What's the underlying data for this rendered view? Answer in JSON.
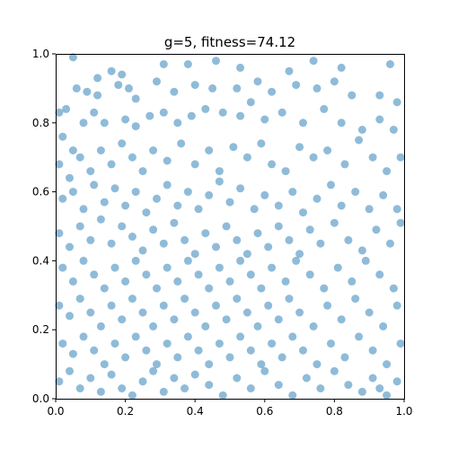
{
  "chart_data": {
    "type": "scatter",
    "title": "g=5, fitness=74.12",
    "xlabel": "",
    "ylabel": "",
    "xlim": [
      0,
      1
    ],
    "ylim": [
      0,
      1
    ],
    "x_ticks": [
      "0.0",
      "0.2",
      "0.4",
      "0.6",
      "0.8",
      "1.0"
    ],
    "y_ticks": [
      "0.0",
      "0.2",
      "0.4",
      "0.6",
      "0.8",
      "1.0"
    ],
    "grid": false,
    "legend": false,
    "marker_color": "#1f77b4",
    "marker_alpha": 0.5,
    "points": [
      [
        0.05,
        0.99
      ],
      [
        0.12,
        0.93
      ],
      [
        0.16,
        0.95
      ],
      [
        0.19,
        0.94
      ],
      [
        0.31,
        0.97
      ],
      [
        0.38,
        0.97
      ],
      [
        0.46,
        0.98
      ],
      [
        0.53,
        0.96
      ],
      [
        0.67,
        0.95
      ],
      [
        0.74,
        0.98
      ],
      [
        0.82,
        0.96
      ],
      [
        0.96,
        0.97
      ],
      [
        0.01,
        0.83
      ],
      [
        0.03,
        0.84
      ],
      [
        0.06,
        0.9
      ],
      [
        0.09,
        0.89
      ],
      [
        0.12,
        0.88
      ],
      [
        0.18,
        0.91
      ],
      [
        0.21,
        0.9
      ],
      [
        0.23,
        0.87
      ],
      [
        0.29,
        0.92
      ],
      [
        0.34,
        0.89
      ],
      [
        0.4,
        0.91
      ],
      [
        0.45,
        0.9
      ],
      [
        0.52,
        0.9
      ],
      [
        0.58,
        0.92
      ],
      [
        0.62,
        0.89
      ],
      [
        0.69,
        0.91
      ],
      [
        0.75,
        0.9
      ],
      [
        0.8,
        0.92
      ],
      [
        0.85,
        0.88
      ],
      [
        0.93,
        0.88
      ],
      [
        0.98,
        0.86
      ],
      [
        0.02,
        0.76
      ],
      [
        0.05,
        0.72
      ],
      [
        0.08,
        0.8
      ],
      [
        0.11,
        0.83
      ],
      [
        0.14,
        0.8
      ],
      [
        0.2,
        0.81
      ],
      [
        0.23,
        0.79
      ],
      [
        0.27,
        0.82
      ],
      [
        0.31,
        0.83
      ],
      [
        0.35,
        0.8
      ],
      [
        0.39,
        0.82
      ],
      [
        0.43,
        0.84
      ],
      [
        0.48,
        0.83
      ],
      [
        0.53,
        0.82
      ],
      [
        0.56,
        0.86
      ],
      [
        0.6,
        0.81
      ],
      [
        0.65,
        0.83
      ],
      [
        0.71,
        0.8
      ],
      [
        0.77,
        0.84
      ],
      [
        0.82,
        0.8
      ],
      [
        0.88,
        0.78
      ],
      [
        0.93,
        0.81
      ],
      [
        0.97,
        0.78
      ],
      [
        0.01,
        0.68
      ],
      [
        0.04,
        0.64
      ],
      [
        0.07,
        0.7
      ],
      [
        0.1,
        0.66
      ],
      [
        0.13,
        0.72
      ],
      [
        0.16,
        0.68
      ],
      [
        0.19,
        0.74
      ],
      [
        0.22,
        0.7
      ],
      [
        0.25,
        0.66
      ],
      [
        0.28,
        0.72
      ],
      [
        0.32,
        0.69
      ],
      [
        0.36,
        0.74
      ],
      [
        0.4,
        0.68
      ],
      [
        0.44,
        0.72
      ],
      [
        0.47,
        0.66
      ],
      [
        0.51,
        0.73
      ],
      [
        0.55,
        0.7
      ],
      [
        0.59,
        0.74
      ],
      [
        0.62,
        0.68
      ],
      [
        0.66,
        0.66
      ],
      [
        0.7,
        0.73
      ],
      [
        0.74,
        0.7
      ],
      [
        0.78,
        0.72
      ],
      [
        0.83,
        0.68
      ],
      [
        0.87,
        0.75
      ],
      [
        0.91,
        0.7
      ],
      [
        0.95,
        0.66
      ],
      [
        0.99,
        0.7
      ],
      [
        0.02,
        0.58
      ],
      [
        0.05,
        0.6
      ],
      [
        0.08,
        0.55
      ],
      [
        0.11,
        0.62
      ],
      [
        0.14,
        0.57
      ],
      [
        0.17,
        0.61
      ],
      [
        0.2,
        0.56
      ],
      [
        0.23,
        0.6
      ],
      [
        0.26,
        0.54
      ],
      [
        0.29,
        0.58
      ],
      [
        0.32,
        0.62
      ],
      [
        0.35,
        0.56
      ],
      [
        0.38,
        0.6
      ],
      [
        0.41,
        0.55
      ],
      [
        0.44,
        0.59
      ],
      [
        0.47,
        0.63
      ],
      [
        0.5,
        0.57
      ],
      [
        0.53,
        0.61
      ],
      [
        0.57,
        0.55
      ],
      [
        0.6,
        0.59
      ],
      [
        0.64,
        0.56
      ],
      [
        0.68,
        0.6
      ],
      [
        0.71,
        0.54
      ],
      [
        0.75,
        0.58
      ],
      [
        0.79,
        0.62
      ],
      [
        0.82,
        0.56
      ],
      [
        0.86,
        0.6
      ],
      [
        0.9,
        0.55
      ],
      [
        0.94,
        0.59
      ],
      [
        0.98,
        0.55
      ],
      [
        0.01,
        0.48
      ],
      [
        0.04,
        0.44
      ],
      [
        0.07,
        0.5
      ],
      [
        0.1,
        0.46
      ],
      [
        0.13,
        0.52
      ],
      [
        0.16,
        0.45
      ],
      [
        0.19,
        0.5
      ],
      [
        0.22,
        0.47
      ],
      [
        0.25,
        0.43
      ],
      [
        0.28,
        0.49
      ],
      [
        0.31,
        0.45
      ],
      [
        0.34,
        0.51
      ],
      [
        0.37,
        0.46
      ],
      [
        0.4,
        0.42
      ],
      [
        0.43,
        0.48
      ],
      [
        0.46,
        0.44
      ],
      [
        0.49,
        0.5
      ],
      [
        0.52,
        0.46
      ],
      [
        0.55,
        0.42
      ],
      [
        0.58,
        0.48
      ],
      [
        0.61,
        0.44
      ],
      [
        0.64,
        0.5
      ],
      [
        0.67,
        0.46
      ],
      [
        0.7,
        0.42
      ],
      [
        0.73,
        0.49
      ],
      [
        0.76,
        0.45
      ],
      [
        0.8,
        0.51
      ],
      [
        0.84,
        0.46
      ],
      [
        0.88,
        0.43
      ],
      [
        0.92,
        0.49
      ],
      [
        0.96,
        0.45
      ],
      [
        0.99,
        0.51
      ],
      [
        0.02,
        0.38
      ],
      [
        0.05,
        0.34
      ],
      [
        0.08,
        0.4
      ],
      [
        0.11,
        0.36
      ],
      [
        0.14,
        0.32
      ],
      [
        0.17,
        0.38
      ],
      [
        0.2,
        0.34
      ],
      [
        0.23,
        0.4
      ],
      [
        0.26,
        0.36
      ],
      [
        0.29,
        0.32
      ],
      [
        0.32,
        0.38
      ],
      [
        0.35,
        0.34
      ],
      [
        0.38,
        0.4
      ],
      [
        0.41,
        0.36
      ],
      [
        0.44,
        0.32
      ],
      [
        0.47,
        0.38
      ],
      [
        0.5,
        0.34
      ],
      [
        0.53,
        0.4
      ],
      [
        0.56,
        0.36
      ],
      [
        0.59,
        0.32
      ],
      [
        0.62,
        0.38
      ],
      [
        0.66,
        0.34
      ],
      [
        0.69,
        0.4
      ],
      [
        0.73,
        0.36
      ],
      [
        0.77,
        0.32
      ],
      [
        0.81,
        0.38
      ],
      [
        0.85,
        0.34
      ],
      [
        0.89,
        0.4
      ],
      [
        0.93,
        0.36
      ],
      [
        0.97,
        0.32
      ],
      [
        0.01,
        0.27
      ],
      [
        0.04,
        0.24
      ],
      [
        0.07,
        0.29
      ],
      [
        0.1,
        0.25
      ],
      [
        0.13,
        0.21
      ],
      [
        0.16,
        0.27
      ],
      [
        0.19,
        0.23
      ],
      [
        0.22,
        0.29
      ],
      [
        0.25,
        0.25
      ],
      [
        0.28,
        0.21
      ],
      [
        0.31,
        0.27
      ],
      [
        0.34,
        0.23
      ],
      [
        0.37,
        0.29
      ],
      [
        0.4,
        0.25
      ],
      [
        0.43,
        0.21
      ],
      [
        0.46,
        0.27
      ],
      [
        0.49,
        0.23
      ],
      [
        0.52,
        0.29
      ],
      [
        0.55,
        0.25
      ],
      [
        0.58,
        0.21
      ],
      [
        0.61,
        0.27
      ],
      [
        0.64,
        0.23
      ],
      [
        0.67,
        0.29
      ],
      [
        0.7,
        0.25
      ],
      [
        0.74,
        0.21
      ],
      [
        0.78,
        0.27
      ],
      [
        0.82,
        0.23
      ],
      [
        0.86,
        0.29
      ],
      [
        0.9,
        0.25
      ],
      [
        0.94,
        0.21
      ],
      [
        0.98,
        0.27
      ],
      [
        0.02,
        0.16
      ],
      [
        0.05,
        0.13
      ],
      [
        0.08,
        0.18
      ],
      [
        0.11,
        0.14
      ],
      [
        0.14,
        0.1
      ],
      [
        0.17,
        0.16
      ],
      [
        0.2,
        0.12
      ],
      [
        0.23,
        0.18
      ],
      [
        0.26,
        0.14
      ],
      [
        0.29,
        0.1
      ],
      [
        0.32,
        0.16
      ],
      [
        0.35,
        0.12
      ],
      [
        0.38,
        0.18
      ],
      [
        0.41,
        0.14
      ],
      [
        0.44,
        0.1
      ],
      [
        0.47,
        0.16
      ],
      [
        0.5,
        0.12
      ],
      [
        0.53,
        0.18
      ],
      [
        0.56,
        0.14
      ],
      [
        0.59,
        0.1
      ],
      [
        0.62,
        0.16
      ],
      [
        0.65,
        0.12
      ],
      [
        0.68,
        0.18
      ],
      [
        0.71,
        0.14
      ],
      [
        0.75,
        0.1
      ],
      [
        0.79,
        0.16
      ],
      [
        0.83,
        0.12
      ],
      [
        0.87,
        0.18
      ],
      [
        0.91,
        0.14
      ],
      [
        0.95,
        0.1
      ],
      [
        0.99,
        0.16
      ],
      [
        0.01,
        0.05
      ],
      [
        0.04,
        0.08
      ],
      [
        0.07,
        0.03
      ],
      [
        0.1,
        0.06
      ],
      [
        0.13,
        0.02
      ],
      [
        0.16,
        0.07
      ],
      [
        0.19,
        0.03
      ],
      [
        0.22,
        0.01
      ],
      [
        0.25,
        0.05
      ],
      [
        0.28,
        0.08
      ],
      [
        0.31,
        0.02
      ],
      [
        0.34,
        0.06
      ],
      [
        0.37,
        0.03
      ],
      [
        0.4,
        0.07
      ],
      [
        0.44,
        0.04
      ],
      [
        0.48,
        0.01
      ],
      [
        0.52,
        0.06
      ],
      [
        0.56,
        0.03
      ],
      [
        0.6,
        0.08
      ],
      [
        0.64,
        0.04
      ],
      [
        0.68,
        0.01
      ],
      [
        0.72,
        0.06
      ],
      [
        0.76,
        0.03
      ],
      [
        0.8,
        0.08
      ],
      [
        0.84,
        0.04
      ],
      [
        0.88,
        0.02
      ],
      [
        0.91,
        0.06
      ],
      [
        0.93,
        0.03
      ],
      [
        0.95,
        0.01
      ],
      [
        0.98,
        0.05
      ]
    ]
  }
}
